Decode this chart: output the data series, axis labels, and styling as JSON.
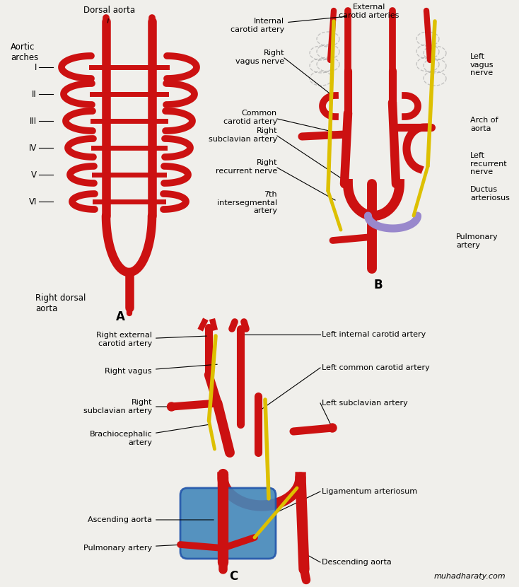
{
  "bg": "#f0efeb",
  "red": "#cc1111",
  "yellow": "#ddc000",
  "lavender": "#9988cc",
  "blue": "#4488bb",
  "watermark": "muhadharaty.com",
  "roman": [
    "I",
    "II",
    "III",
    "IV",
    "V",
    "VI"
  ]
}
